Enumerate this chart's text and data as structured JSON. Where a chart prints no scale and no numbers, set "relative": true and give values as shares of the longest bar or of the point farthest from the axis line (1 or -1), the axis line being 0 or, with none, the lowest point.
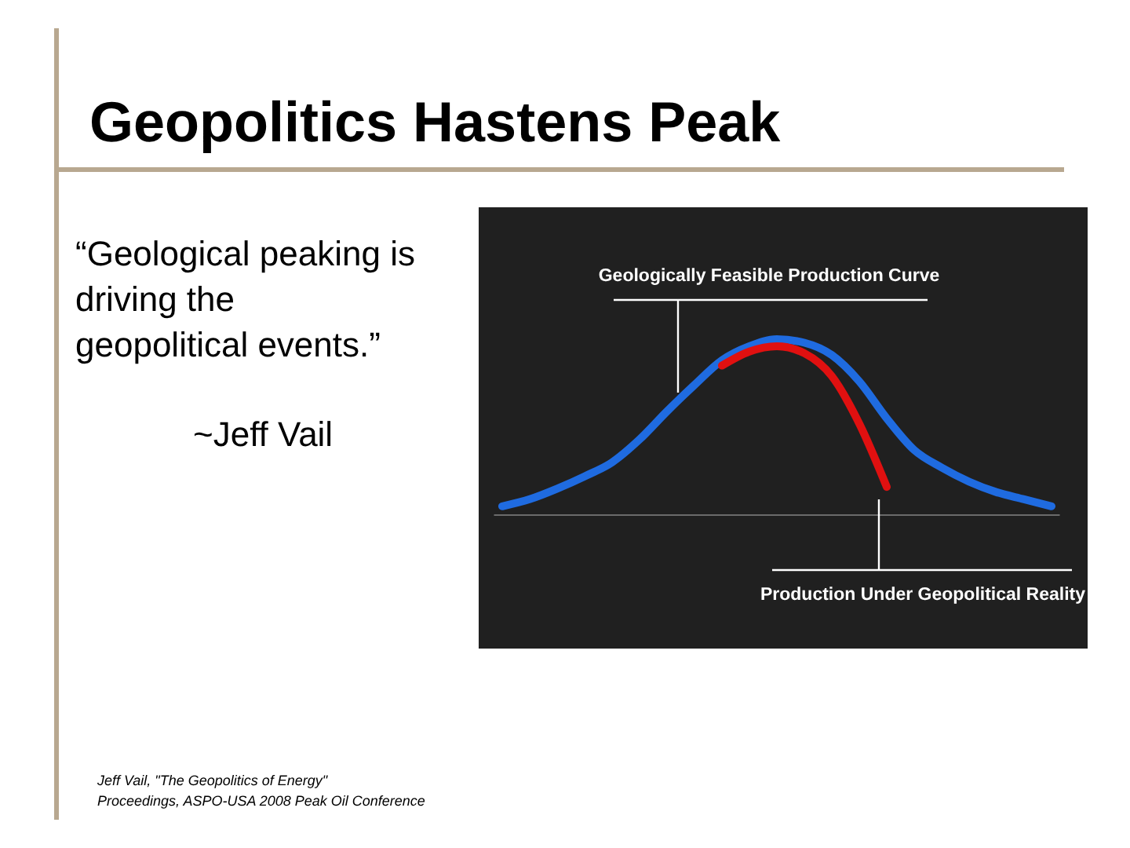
{
  "chart_data": {
    "type": "line",
    "title": "Geopolitics Hastens Peak",
    "relative": true,
    "categories": [
      null,
      null,
      null,
      null,
      null,
      null,
      null,
      null,
      null,
      null,
      null,
      null,
      null,
      null,
      null,
      null,
      null,
      null,
      null,
      null,
      null
    ],
    "series": [
      {
        "color": "#1f6be0",
        "values": [
          0.05,
          0.09,
          0.15,
          0.22,
          0.3,
          0.43,
          0.59,
          0.74,
          0.88,
          0.96,
          1.0,
          0.98,
          0.91,
          0.76,
          0.55,
          0.37,
          0.27,
          0.19,
          0.13,
          0.09,
          0.05
        ]
      },
      {
        "color": "#e01010",
        "values": [
          null,
          null,
          null,
          null,
          null,
          null,
          null,
          null,
          0.85,
          0.93,
          0.96,
          0.92,
          0.79,
          0.52,
          0.16,
          null,
          null,
          null,
          null,
          null,
          null
        ]
      }
    ],
    "annotations": [
      "“Geological peaking is\n   driving the\n   geopolitical events.”",
      "~Jeff Vail",
      "Jeff Vail, \"The Geopolitics of Energy\"\nProceedings, ASPO-USA 2008 Peak Oil Conference",
      "Geologically Feasible Production Curve",
      "Production Under Geopolitical Reality"
    ]
  }
}
